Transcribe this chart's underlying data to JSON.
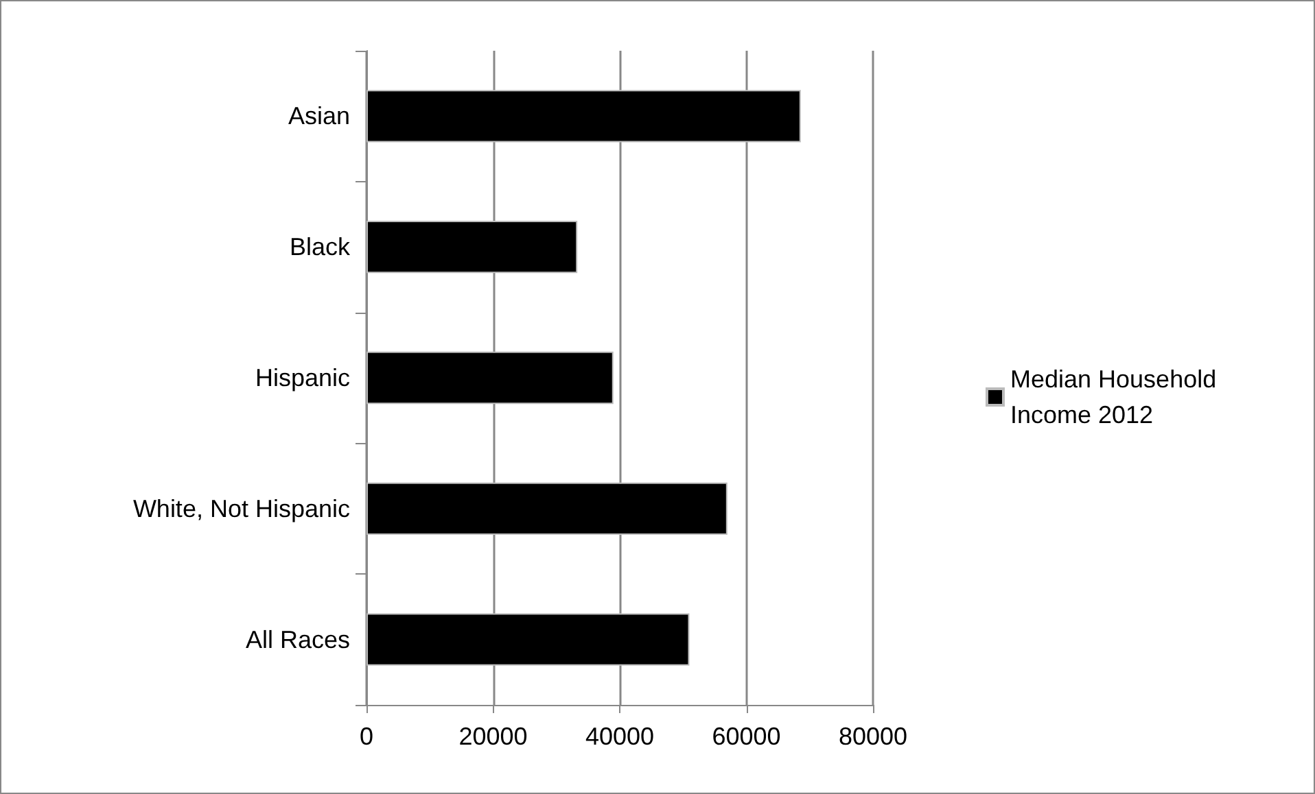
{
  "chart_data": {
    "type": "bar",
    "orientation": "horizontal",
    "categories": [
      "Asian",
      "Black",
      "Hispanic",
      "White, Not Hispanic",
      "All Races"
    ],
    "series": [
      {
        "name": "Median Household Income 2012",
        "color": "#000000",
        "values": [
          68600,
          33300,
          39000,
          57000,
          51000
        ]
      }
    ],
    "xlim": [
      0,
      80000
    ],
    "xticks": [
      0,
      20000,
      40000,
      60000,
      80000
    ],
    "grid": "x",
    "legend": "right"
  }
}
